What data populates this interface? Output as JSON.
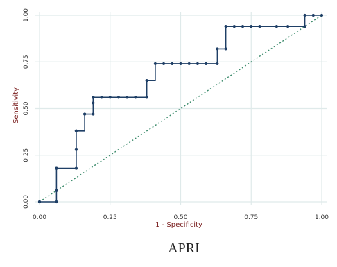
{
  "chart_data": {
    "type": "line",
    "title": "APRI",
    "xlabel": "1 - Specificity",
    "ylabel": "Sensitivity",
    "xlim": [
      0,
      1
    ],
    "ylim": [
      0,
      1
    ],
    "x_ticks": [
      "0.00",
      "0.25",
      "0.50",
      "0.75",
      "1.00"
    ],
    "y_ticks": [
      "0.00",
      "0.25",
      "0.50",
      "0.75",
      "1.00"
    ],
    "grid": true,
    "colors": {
      "roc": "#1f3f66",
      "reference": "#3a8a6a",
      "grid": "#dfeaea",
      "axis_title": "#7a1f1f"
    },
    "series": [
      {
        "x": [
          0.0,
          0.0,
          0.06,
          0.06,
          0.06,
          0.06,
          0.13,
          0.13,
          0.13,
          0.13,
          0.16,
          0.16,
          0.19,
          0.19,
          0.19,
          0.19,
          0.19,
          0.22,
          0.25,
          0.28,
          0.31,
          0.34,
          0.38,
          0.38,
          0.41,
          0.44,
          0.47,
          0.5,
          0.53,
          0.56,
          0.59,
          0.63,
          0.63,
          0.66,
          0.66,
          0.69,
          0.72,
          0.75,
          0.78,
          0.84,
          0.88,
          0.94,
          0.94,
          0.97,
          1.0
        ],
        "y": [
          0.0,
          0.0,
          0.0,
          0.06,
          0.18,
          0.18,
          0.18,
          0.28,
          0.38,
          0.38,
          0.47,
          0.47,
          0.47,
          0.53,
          0.56,
          0.56,
          0.56,
          0.56,
          0.56,
          0.56,
          0.56,
          0.56,
          0.56,
          0.65,
          0.74,
          0.74,
          0.74,
          0.74,
          0.74,
          0.74,
          0.74,
          0.74,
          0.82,
          0.82,
          0.94,
          0.94,
          0.94,
          0.94,
          0.94,
          0.94,
          0.94,
          0.94,
          1.0,
          1.0,
          1.0
        ]
      }
    ]
  }
}
